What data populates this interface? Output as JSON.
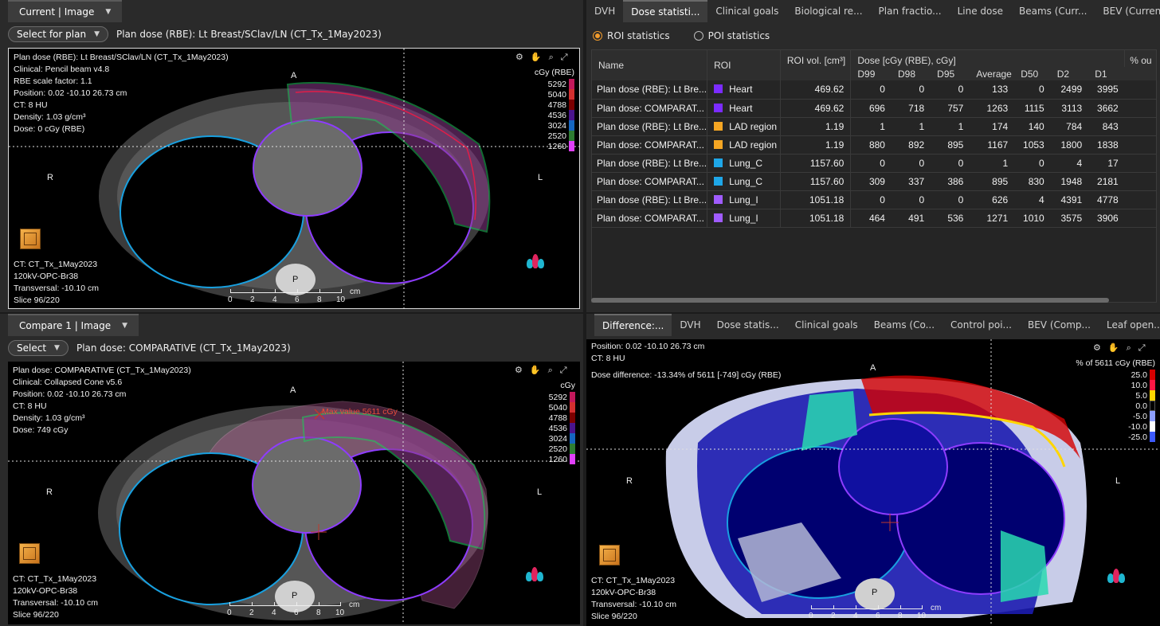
{
  "current_view": {
    "tab_label": "Current | Image",
    "select_button": "Select for plan",
    "plan_title": "Plan dose (RBE): Lt Breast/SClav/LN (CT_Tx_1May2023)",
    "overlay": {
      "line1": "Plan dose (RBE): Lt Breast/SClav/LN (CT_Tx_1May2023)",
      "line2": "Clinical: Pencil beam v4.8",
      "line3": "RBE scale factor: 1.1",
      "position": "Position: 0.02 -10.10 26.73 cm",
      "ct": "CT: 8 HU",
      "density": "Density: 1.03 g/cm³",
      "dose": "Dose: 0 cGy (RBE)"
    },
    "footer": {
      "ct": "CT: CT_Tx_1May2023",
      "kv": "120kV-OPC-Br38",
      "transversal": "Transversal: -10.10 cm",
      "slice": "Slice 96/220"
    },
    "legend": {
      "unit": "cGy (RBE)",
      "levels": [
        "5292",
        "5040",
        "4788",
        "4536",
        "3024",
        "2520",
        "1260"
      ]
    }
  },
  "compare_view": {
    "tab_label": "Compare 1 | Image",
    "select_button": "Select",
    "plan_title": "Plan dose: COMPARATIVE (CT_Tx_1May2023)",
    "overlay": {
      "line1": "Plan dose: COMPARATIVE (CT_Tx_1May2023)",
      "line2": "Clinical: Collapsed Cone v5.6",
      "position": "Position: 0.02 -10.10 26.73 cm",
      "ct": "CT: 8 HU",
      "density": "Density: 1.03 g/cm³",
      "dose": "Dose: 749 cGy"
    },
    "max_value": "Max value 5611 cGy",
    "footer": {
      "ct": "CT: CT_Tx_1May2023",
      "kv": "120kV-OPC-Br38",
      "transversal": "Transversal: -10.10 cm",
      "slice": "Slice 96/220"
    },
    "legend": {
      "unit": "cGy",
      "levels": [
        "5292",
        "5040",
        "4788",
        "4536",
        "3024",
        "2520",
        "1260"
      ]
    }
  },
  "orientation": {
    "anterior": "A",
    "posterior": "P",
    "right": "R",
    "left": "L"
  },
  "scale": {
    "ticks": [
      "0",
      "2",
      "4",
      "6",
      "8",
      "10"
    ],
    "unit": "cm"
  },
  "stats_panel": {
    "tabs": [
      "DVH",
      "Dose statisti...",
      "Clinical goals",
      "Biological re...",
      "Plan fractio...",
      "Line dose",
      "Beams (Curr...",
      "BEV (Current)"
    ],
    "active_tab": 1,
    "radio_roi": "ROI statistics",
    "radio_poi": "POI statistics",
    "headers": {
      "name": "Name",
      "roi": "ROI",
      "vol": "ROI vol. [cm³]",
      "dose_group": "Dose [cGy (RBE), cGy]",
      "pct": "% ou"
    },
    "dose_cols": [
      "D99",
      "D98",
      "D95",
      "Average",
      "D50",
      "D2",
      "D1"
    ],
    "rows": [
      {
        "name": "Plan dose (RBE): Lt Bre...",
        "roi": "Heart",
        "color": "#7b2cff",
        "vol": "469.62",
        "d": [
          "0",
          "0",
          "0",
          "133",
          "0",
          "2499",
          "3995"
        ]
      },
      {
        "name": "Plan dose: COMPARAT...",
        "roi": "Heart",
        "color": "#7b2cff",
        "vol": "469.62",
        "d": [
          "696",
          "718",
          "757",
          "1263",
          "1115",
          "3113",
          "3662"
        ]
      },
      {
        "name": "Plan dose (RBE): Lt Bre...",
        "roi": "LAD region",
        "color": "#f5a623",
        "vol": "1.19",
        "d": [
          "1",
          "1",
          "1",
          "174",
          "140",
          "784",
          "843"
        ]
      },
      {
        "name": "Plan dose: COMPARAT...",
        "roi": "LAD region",
        "color": "#f5a623",
        "vol": "1.19",
        "d": [
          "880",
          "892",
          "895",
          "1167",
          "1053",
          "1800",
          "1838"
        ]
      },
      {
        "name": "Plan dose (RBE): Lt Bre...",
        "roi": "Lung_C",
        "color": "#1ea7e8",
        "vol": "1157.60",
        "d": [
          "0",
          "0",
          "0",
          "1",
          "0",
          "4",
          "17"
        ]
      },
      {
        "name": "Plan dose: COMPARAT...",
        "roi": "Lung_C",
        "color": "#1ea7e8",
        "vol": "1157.60",
        "d": [
          "309",
          "337",
          "386",
          "895",
          "830",
          "1948",
          "2181"
        ]
      },
      {
        "name": "Plan dose (RBE): Lt Bre...",
        "roi": "Lung_I",
        "color": "#a05cff",
        "vol": "1051.18",
        "d": [
          "0",
          "0",
          "0",
          "626",
          "4",
          "4391",
          "4778"
        ]
      },
      {
        "name": "Plan dose: COMPARAT...",
        "roi": "Lung_I",
        "color": "#a05cff",
        "vol": "1051.18",
        "d": [
          "464",
          "491",
          "536",
          "1271",
          "1010",
          "3575",
          "3906"
        ]
      }
    ]
  },
  "diff_panel": {
    "tabs": [
      "Difference:...",
      "DVH",
      "Dose statis...",
      "Clinical goals",
      "Beams (Co...",
      "Control poi...",
      "BEV (Comp...",
      "Leaf open..."
    ],
    "overlay": {
      "position": "Position: 0.02 -10.10 26.73 cm",
      "ct": "CT: 8 HU",
      "difference": "Dose difference: -13.34% of 5611 [-749] cGy (RBE)"
    },
    "legend": {
      "unit": "% of 5611 cGy (RBE)",
      "levels": [
        "25.0",
        "10.0",
        "5.0",
        "0.0",
        "-5.0",
        "-10.0",
        "-25.0"
      ]
    },
    "footer": {
      "ct": "CT: CT_Tx_1May2023",
      "kv": "120kV-OPC-Br38",
      "transversal": "Transversal: -10.10 cm",
      "slice": "Slice 96/220"
    }
  },
  "colors": {
    "dose_legend": [
      "#c2185b",
      "#d32f2f",
      "#7b0000",
      "#4a148c",
      "#1565c0",
      "#2e7d32",
      "#e040fb"
    ],
    "diff_legend": [
      "#d50000",
      "#ff1744",
      "#ffd600",
      "#000000",
      "#8c9eff",
      "#ffffff",
      "#3d5afe"
    ]
  }
}
